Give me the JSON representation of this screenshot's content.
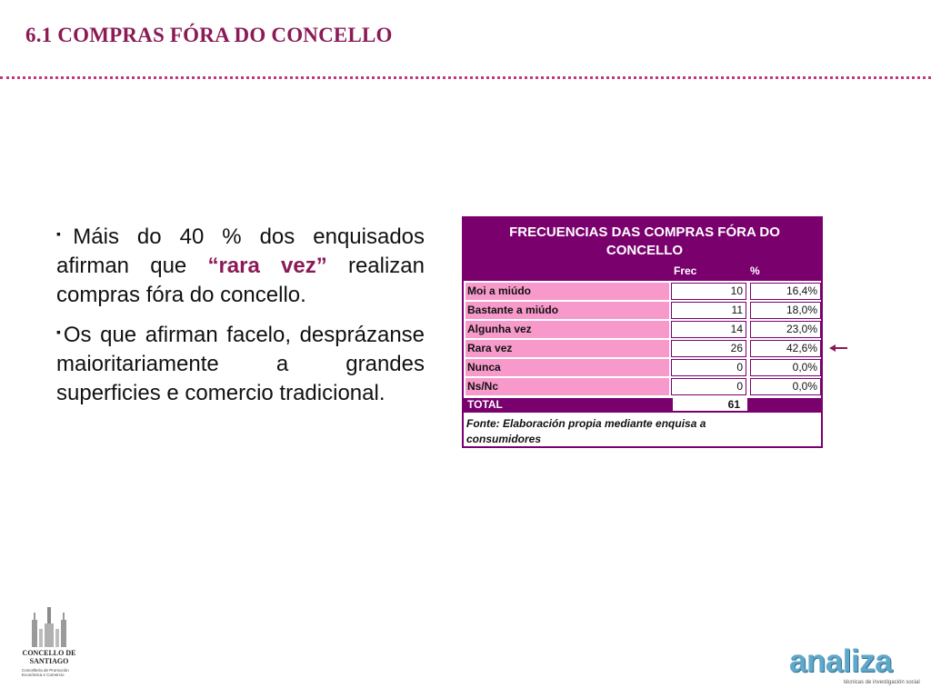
{
  "slide": {
    "title": "6.1  COMPRAS FÓRA DO CONCELLO"
  },
  "bullets": [
    {
      "mark": "▪",
      "text_before": "Máis do 40 % dos enquisados afirman que ",
      "emphasis": "“rara vez”",
      "text_after": " realizan compras fóra do concello."
    },
    {
      "mark": "▪",
      "text": "Os que afirman facelo, desprázanse maioritariamente a grandes superficies e comercio tradicional."
    }
  ],
  "table": {
    "title": "FRECUENCIAS DAS COMPRAS FÓRA DO CONCELLO",
    "col_freq": "Frec",
    "col_pct": "%",
    "rows": [
      {
        "label": "Moi a miúdo",
        "freq": "10",
        "pct": "16,4%"
      },
      {
        "label": "Bastante a miúdo",
        "freq": "11",
        "pct": "18,0%"
      },
      {
        "label": "Algunha vez",
        "freq": "14",
        "pct": "23,0%"
      },
      {
        "label": "Rara vez",
        "freq": "26",
        "pct": "42,6%"
      },
      {
        "label": "Nunca",
        "freq": "0",
        "pct": "0,0%"
      },
      {
        "label": "Ns/Nc",
        "freq": "0",
        "pct": "0,0%"
      }
    ],
    "total_label": "TOTAL",
    "total_value": "61",
    "source": "Fonte: Elaboración propia mediante enquisa a consumidores"
  },
  "highlight_arrow": {
    "icon": "arrow-left-icon",
    "row": "Rara vez"
  },
  "logos": {
    "concello_name_line1": "CONCELLO DE",
    "concello_name_line2": "SANTIAGO",
    "concello_sub": "Concellería de Promoción Económica e Comercio",
    "analiza_word": "analiza",
    "analiza_tagline": "técnicas de investigación social"
  },
  "colors": {
    "title": "#8b1a55",
    "accent_purple": "#7a006e",
    "label_pink": "#f79acb",
    "rule_dots": "#c2377f",
    "analiza_blue": "#5fa8c9"
  }
}
